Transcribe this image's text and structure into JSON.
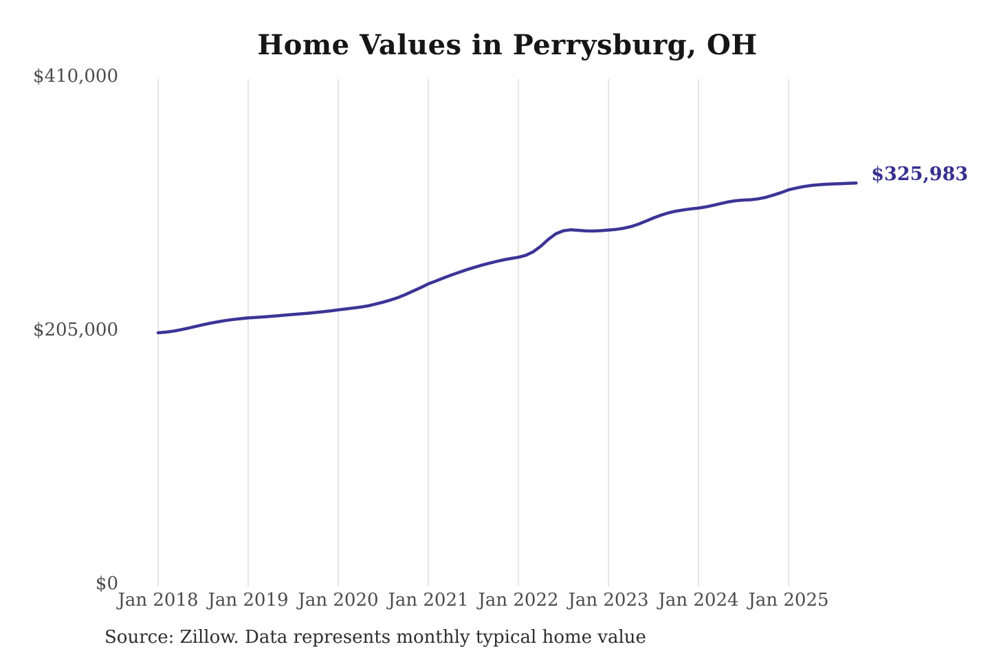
{
  "chart_data": {
    "type": "line",
    "title": "Home Values in Perrysburg, OH",
    "source": "Source: Zillow. Data represents monthly typical home value",
    "series_name": "Monthly typical home value",
    "unit": "USD",
    "end_label": "$325,983",
    "end_value": 325983,
    "xlabel": "",
    "ylabel": "",
    "ylim": [
      0,
      410000
    ],
    "grid": "vertical-only",
    "legend": "none",
    "y_ticks": [
      {
        "label": "$0",
        "value": 0
      },
      {
        "label": "$205,000",
        "value": 205000
      },
      {
        "label": "$410,000",
        "value": 410000
      }
    ],
    "x_ticks": [
      {
        "label": "Jan 2018",
        "index": 0
      },
      {
        "label": "Jan 2019",
        "index": 12
      },
      {
        "label": "Jan 2020",
        "index": 24
      },
      {
        "label": "Jan 2021",
        "index": 36
      },
      {
        "label": "Jan 2022",
        "index": 48
      },
      {
        "label": "Jan 2023",
        "index": 60
      },
      {
        "label": "Jan 2024",
        "index": 72
      },
      {
        "label": "Jan 2025",
        "index": 84
      }
    ],
    "months": [
      "2018-01",
      "2018-02",
      "2018-03",
      "2018-04",
      "2018-05",
      "2018-06",
      "2018-07",
      "2018-08",
      "2018-09",
      "2018-10",
      "2018-11",
      "2018-12",
      "2019-01",
      "2019-02",
      "2019-03",
      "2019-04",
      "2019-05",
      "2019-06",
      "2019-07",
      "2019-08",
      "2019-09",
      "2019-10",
      "2019-11",
      "2019-12",
      "2020-01",
      "2020-02",
      "2020-03",
      "2020-04",
      "2020-05",
      "2020-06",
      "2020-07",
      "2020-08",
      "2020-09",
      "2020-10",
      "2020-11",
      "2020-12",
      "2021-01",
      "2021-02",
      "2021-03",
      "2021-04",
      "2021-05",
      "2021-06",
      "2021-07",
      "2021-08",
      "2021-09",
      "2021-10",
      "2021-11",
      "2021-12",
      "2022-01",
      "2022-02",
      "2022-03",
      "2022-04",
      "2022-05",
      "2022-06",
      "2022-07",
      "2022-08",
      "2022-09",
      "2022-10",
      "2022-11",
      "2022-12",
      "2023-01",
      "2023-02",
      "2023-03",
      "2023-04",
      "2023-05",
      "2023-06",
      "2023-07",
      "2023-08",
      "2023-09",
      "2023-10",
      "2023-11",
      "2023-12",
      "2024-01",
      "2024-02",
      "2024-03",
      "2024-04",
      "2024-05",
      "2024-06",
      "2024-07",
      "2024-08",
      "2024-09",
      "2024-10",
      "2024-11",
      "2024-12",
      "2025-01",
      "2025-02",
      "2025-03",
      "2025-04",
      "2025-05",
      "2025-06",
      "2025-07",
      "2025-08",
      "2025-09",
      "2025-10"
    ],
    "values": [
      205000,
      205500,
      206300,
      207400,
      208700,
      210100,
      211500,
      212800,
      213900,
      214900,
      215700,
      216400,
      217000,
      217400,
      217800,
      218300,
      218800,
      219300,
      219800,
      220300,
      220800,
      221400,
      222000,
      222700,
      223500,
      224200,
      225000,
      225800,
      226800,
      228200,
      229800,
      231500,
      233500,
      236000,
      238800,
      241500,
      244500,
      246800,
      249200,
      251500,
      253600,
      255700,
      257600,
      259400,
      261000,
      262500,
      263900,
      265000,
      266000,
      267600,
      270500,
      275000,
      280500,
      285000,
      287400,
      288200,
      287800,
      287300,
      287200,
      287500,
      288000,
      288500,
      289400,
      290800,
      292800,
      295200,
      297800,
      300000,
      301900,
      303300,
      304300,
      305100,
      305800,
      306700,
      308000,
      309500,
      310800,
      311700,
      312200,
      312500,
      313200,
      314500,
      316300,
      318200,
      320500,
      321900,
      323100,
      324000,
      324600,
      325000,
      325300,
      325500,
      325750,
      325983
    ],
    "colors": {
      "line": "#3c3596",
      "end_label": "#36308f",
      "grid": "#cbcbcb",
      "axis_text": "#4b4b4b",
      "title_text": "#161616",
      "source_text": "#2e2e2e"
    }
  }
}
